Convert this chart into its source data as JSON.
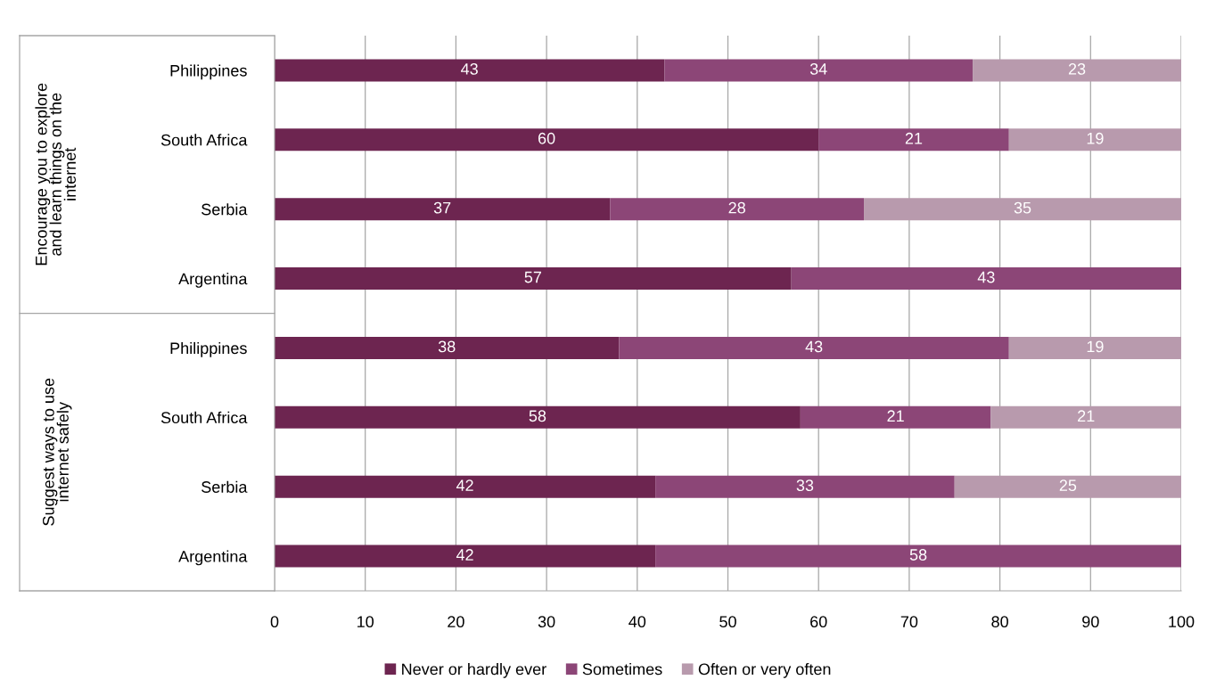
{
  "chart_data": {
    "type": "bar",
    "orientation": "horizontal",
    "stacked": true,
    "categories": [
      "Philippines",
      "South Africa",
      "Serbia",
      "Argentina",
      "Philippines",
      "South Africa",
      "Serbia",
      "Argentina"
    ],
    "series": [
      {
        "name": "Never or hardly ever",
        "color": "#6d2550",
        "values": [
          43,
          60,
          37,
          57,
          38,
          58,
          42,
          42
        ]
      },
      {
        "name": "Sometimes",
        "color": "#8c4677",
        "values": [
          34,
          21,
          28,
          43,
          43,
          21,
          33,
          58
        ]
      },
      {
        "name": "Often or very often",
        "color": "#b89aad",
        "values": [
          23,
          19,
          35,
          null,
          19,
          21,
          25,
          null
        ]
      }
    ],
    "annotations": [
      "Encourage you to explore\nand learn things on the\ninternet",
      "Suggest ways to use\ninternet safely"
    ],
    "xlim": [
      0,
      100
    ],
    "xticks": [
      0,
      10,
      20,
      30,
      40,
      50,
      60,
      70,
      80,
      90,
      100
    ],
    "grid": "x",
    "legend": "bottom",
    "data_labels": true
  }
}
